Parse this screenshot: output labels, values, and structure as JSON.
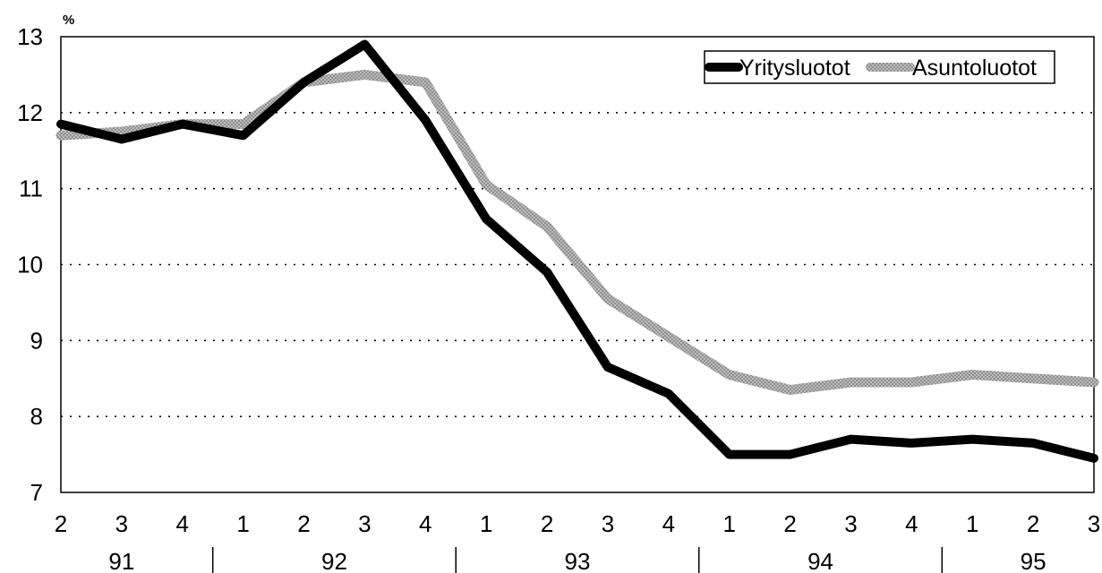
{
  "chart_data": {
    "type": "line",
    "title": "",
    "xlabel": "",
    "ylabel": "%",
    "ylim": [
      7,
      13
    ],
    "yticks": [
      7,
      8,
      9,
      10,
      11,
      12,
      13
    ],
    "grid": "horizontal-dotted",
    "legend_position": "top-right",
    "x_quarters": [
      "2",
      "3",
      "4",
      "1",
      "2",
      "3",
      "4",
      "1",
      "2",
      "3",
      "4",
      "1",
      "2",
      "3",
      "4",
      "1",
      "2",
      "3"
    ],
    "x_years": [
      {
        "label": "91",
        "start": 0,
        "end": 2
      },
      {
        "label": "92",
        "start": 3,
        "end": 6
      },
      {
        "label": "93",
        "start": 7,
        "end": 10
      },
      {
        "label": "94",
        "start": 11,
        "end": 14
      },
      {
        "label": "95",
        "start": 15,
        "end": 17
      }
    ],
    "series": [
      {
        "name": "Yritysluotot",
        "color": "#000000",
        "style": "solid-thick",
        "values": [
          11.85,
          11.65,
          11.85,
          11.7,
          12.4,
          12.9,
          11.9,
          10.6,
          9.9,
          8.65,
          8.3,
          7.5,
          7.5,
          7.7,
          7.65,
          7.7,
          7.65,
          7.45
        ]
      },
      {
        "name": "Asuntoluotot",
        "color": "#9a9a9a",
        "style": "hatched-thick",
        "values": [
          11.7,
          11.75,
          11.85,
          11.85,
          12.4,
          12.5,
          12.4,
          11.05,
          10.5,
          9.55,
          9.05,
          8.55,
          8.35,
          8.45,
          8.45,
          8.55,
          8.5,
          8.45
        ]
      }
    ]
  }
}
